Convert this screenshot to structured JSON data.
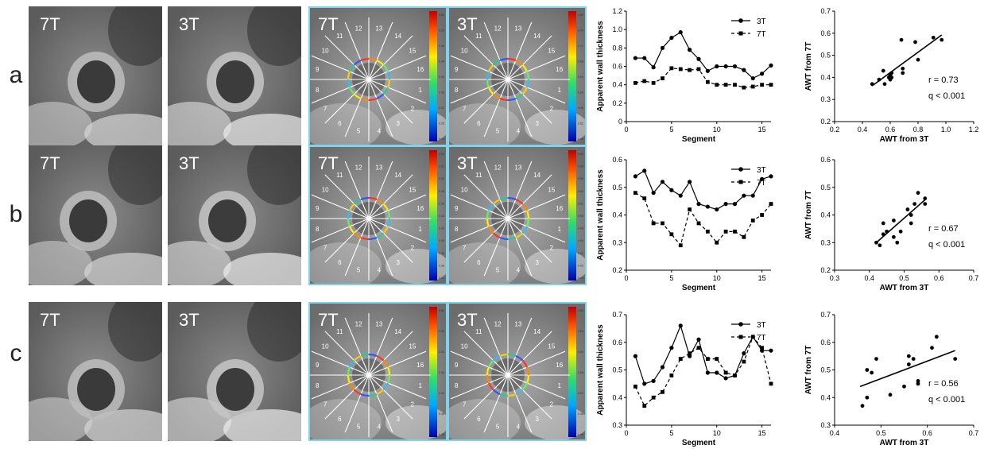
{
  "rows": [
    {
      "label": "a",
      "mri": [
        "7T",
        "3T"
      ],
      "maps": [
        "7T",
        "3T"
      ],
      "map_scale_left": [
        "0.64",
        "0.56",
        "0.48",
        "0.44",
        "0.40",
        "0.36",
        "0.32",
        "0.28",
        "0.24"
      ],
      "map_scale_right": [
        "0.80",
        "0.76",
        "0.72",
        "0.68",
        "0.64",
        "0.60",
        "0.56",
        "0.52",
        "0.48"
      ],
      "stat_r": "r = 0.73",
      "stat_q": "q < 0.001"
    },
    {
      "label": "b",
      "mri": [
        "7T",
        "3T"
      ],
      "maps": [
        "7T",
        "3T"
      ],
      "map_scale_left": [
        "0.54",
        "0.52",
        "0.50",
        "0.48",
        "0.46",
        "0.44",
        "0.42",
        "0.40",
        "0.38",
        "0.36",
        "0.34"
      ],
      "map_scale_right": [
        "0.60",
        "0.58",
        "0.56",
        "0.54",
        "0.52",
        "0.50",
        "0.48",
        "0.46",
        "0.44",
        "0.42",
        "0.40"
      ],
      "stat_r": "r = 0.67",
      "stat_q": "q < 0.001"
    },
    {
      "label": "c",
      "mri": [
        "7T",
        "3T"
      ],
      "maps": [
        "7T",
        "3T"
      ],
      "map_scale_left": [
        "0.60",
        "0.56",
        "0.52",
        "0.48",
        "0.44",
        "0.40",
        "0.36"
      ],
      "map_scale_right": [
        "0.68",
        "0.64",
        "0.60",
        "0.56",
        "0.52",
        "0.48",
        "0.44"
      ],
      "stat_r": "r = 0.56",
      "stat_q": "q < 0.001"
    }
  ],
  "segment_numbers": [
    "1",
    "2",
    "3",
    "4",
    "5",
    "6",
    "7",
    "8",
    "9",
    "10",
    "11",
    "12",
    "13",
    "14",
    "15",
    "16"
  ],
  "colors": {
    "panel_border": "#7fd3ea",
    "line": "#000000",
    "background": "#ffffff"
  },
  "chart_data": [
    {
      "type": "line",
      "panel": "a",
      "xlabel": "Segment",
      "ylabel": "Apparent wall thickness",
      "xlim": [
        0,
        16
      ],
      "ylim": [
        0,
        1.2
      ],
      "xticks": [
        0,
        5,
        10,
        15
      ],
      "yticks": [
        0,
        0.2,
        0.4,
        0.6,
        0.8,
        1.0,
        1.2
      ],
      "legend_position": "top-right",
      "series": [
        {
          "name": "3T",
          "marker": "circle",
          "style": "solid",
          "x": [
            1,
            2,
            3,
            4,
            5,
            6,
            7,
            8,
            9,
            10,
            11,
            12,
            13,
            14,
            15,
            16
          ],
          "values": [
            0.69,
            0.69,
            0.59,
            0.8,
            0.91,
            0.97,
            0.78,
            0.68,
            0.55,
            0.6,
            0.6,
            0.6,
            0.56,
            0.47,
            0.52,
            0.61
          ]
        },
        {
          "name": "7T",
          "marker": "square",
          "style": "dashed",
          "x": [
            1,
            2,
            3,
            4,
            5,
            6,
            7,
            8,
            9,
            10,
            11,
            12,
            13,
            14,
            15,
            16
          ],
          "values": [
            0.42,
            0.44,
            0.42,
            0.47,
            0.58,
            0.57,
            0.56,
            0.57,
            0.43,
            0.4,
            0.4,
            0.4,
            0.37,
            0.38,
            0.4,
            0.4
          ]
        }
      ]
    },
    {
      "type": "scatter",
      "panel": "a",
      "xlabel": "AWT from 3T",
      "ylabel": "AWT from 7T",
      "xlim": [
        0.2,
        1.2
      ],
      "ylim": [
        0.2,
        0.7
      ],
      "xticks": [
        0.2,
        0.4,
        0.6,
        0.8,
        1.0,
        1.2
      ],
      "yticks": [
        0.2,
        0.3,
        0.4,
        0.5,
        0.6,
        0.7
      ],
      "points": [
        [
          0.47,
          0.37
        ],
        [
          0.52,
          0.39
        ],
        [
          0.55,
          0.43
        ],
        [
          0.56,
          0.37
        ],
        [
          0.59,
          0.4
        ],
        [
          0.6,
          0.41
        ],
        [
          0.61,
          0.42
        ],
        [
          0.61,
          0.4
        ],
        [
          0.68,
          0.57
        ],
        [
          0.69,
          0.44
        ],
        [
          0.69,
          0.42
        ],
        [
          0.78,
          0.56
        ],
        [
          0.8,
          0.48
        ],
        [
          0.91,
          0.58
        ],
        [
          0.97,
          0.57
        ],
        [
          0.6,
          0.39
        ]
      ],
      "fit": {
        "x": [
          0.47,
          0.97
        ],
        "y": [
          0.362,
          0.592
        ]
      }
    },
    {
      "type": "line",
      "panel": "b",
      "xlabel": "Segment",
      "ylabel": "Apparent wall thickness",
      "xlim": [
        0,
        16
      ],
      "ylim": [
        0.2,
        0.6
      ],
      "xticks": [
        0,
        5,
        10,
        15
      ],
      "yticks": [
        0.2,
        0.3,
        0.4,
        0.5,
        0.6
      ],
      "legend_position": "top-right",
      "series": [
        {
          "name": "3T",
          "marker": "circle",
          "style": "solid",
          "x": [
            1,
            2,
            3,
            4,
            5,
            6,
            7,
            8,
            9,
            10,
            11,
            12,
            13,
            14,
            15,
            16
          ],
          "values": [
            0.54,
            0.56,
            0.48,
            0.52,
            0.49,
            0.47,
            0.52,
            0.44,
            0.43,
            0.42,
            0.44,
            0.44,
            0.47,
            0.47,
            0.53,
            0.54
          ]
        },
        {
          "name": "7T",
          "marker": "square",
          "style": "dashed",
          "x": [
            1,
            2,
            3,
            4,
            5,
            6,
            7,
            8,
            9,
            10,
            11,
            12,
            13,
            14,
            15,
            16
          ],
          "values": [
            0.48,
            0.46,
            0.37,
            0.37,
            0.33,
            0.29,
            0.42,
            0.37,
            0.34,
            0.3,
            0.34,
            0.34,
            0.32,
            0.38,
            0.4,
            0.44
          ]
        }
      ]
    },
    {
      "type": "scatter",
      "panel": "b",
      "xlabel": "AWT from 3T",
      "ylabel": "AWT from 7T",
      "xlim": [
        0.3,
        0.7
      ],
      "ylim": [
        0.2,
        0.6
      ],
      "xticks": [
        0.3,
        0.4,
        0.5,
        0.6,
        0.7
      ],
      "yticks": [
        0.2,
        0.3,
        0.4,
        0.5,
        0.6
      ],
      "points": [
        [
          0.42,
          0.3
        ],
        [
          0.43,
          0.29
        ],
        [
          0.44,
          0.33
        ],
        [
          0.44,
          0.37
        ],
        [
          0.45,
          0.34
        ],
        [
          0.47,
          0.38
        ],
        [
          0.47,
          0.32
        ],
        [
          0.48,
          0.3
        ],
        [
          0.49,
          0.34
        ],
        [
          0.51,
          0.42
        ],
        [
          0.52,
          0.37
        ],
        [
          0.52,
          0.4
        ],
        [
          0.53,
          0.44
        ],
        [
          0.54,
          0.48
        ],
        [
          0.56,
          0.46
        ],
        [
          0.56,
          0.44
        ]
      ],
      "fit": {
        "x": [
          0.42,
          0.56
        ],
        "y": [
          0.3,
          0.455
        ]
      }
    },
    {
      "type": "line",
      "panel": "c",
      "xlabel": "Segment",
      "ylabel": "Apparent wall thickness",
      "xlim": [
        0,
        16
      ],
      "ylim": [
        0.3,
        0.7
      ],
      "xticks": [
        0,
        5,
        10,
        15
      ],
      "yticks": [
        0.3,
        0.4,
        0.5,
        0.6,
        0.7
      ],
      "legend_position": "top-right",
      "series": [
        {
          "name": "3T",
          "marker": "circle",
          "style": "solid",
          "x": [
            1,
            2,
            3,
            4,
            5,
            6,
            7,
            8,
            9,
            10,
            11,
            12,
            13,
            14,
            15,
            16
          ],
          "values": [
            0.55,
            0.45,
            0.46,
            0.51,
            0.58,
            0.66,
            0.55,
            0.61,
            0.49,
            0.49,
            0.47,
            0.48,
            0.56,
            0.62,
            0.57,
            0.57
          ]
        },
        {
          "name": "7T",
          "marker": "square",
          "style": "dashed",
          "x": [
            1,
            2,
            3,
            4,
            5,
            6,
            7,
            8,
            9,
            10,
            11,
            12,
            13,
            14,
            15,
            16
          ],
          "values": [
            0.44,
            0.37,
            0.4,
            0.42,
            0.48,
            0.54,
            0.56,
            0.58,
            0.54,
            0.54,
            0.49,
            0.48,
            0.53,
            0.62,
            0.58,
            0.45
          ]
        }
      ]
    },
    {
      "type": "scatter",
      "panel": "c",
      "xlabel": "AWT from 3T",
      "ylabel": "AWT from 7T",
      "xlim": [
        0.4,
        0.7
      ],
      "ylim": [
        0.3,
        0.7
      ],
      "xticks": [
        0.4,
        0.5,
        0.6,
        0.7
      ],
      "yticks": [
        0.3,
        0.4,
        0.5,
        0.6,
        0.7
      ],
      "points": [
        [
          0.46,
          0.37
        ],
        [
          0.47,
          0.4
        ],
        [
          0.47,
          0.5
        ],
        [
          0.48,
          0.49
        ],
        [
          0.49,
          0.54
        ],
        [
          0.52,
          0.41
        ],
        [
          0.55,
          0.44
        ],
        [
          0.56,
          0.55
        ],
        [
          0.57,
          0.54
        ],
        [
          0.58,
          0.45
        ],
        [
          0.58,
          0.46
        ],
        [
          0.61,
          0.58
        ],
        [
          0.62,
          0.62
        ],
        [
          0.66,
          0.54
        ],
        [
          0.56,
          0.52
        ]
      ],
      "fit": {
        "x": [
          0.455,
          0.66
        ],
        "y": [
          0.44,
          0.57
        ]
      }
    }
  ]
}
